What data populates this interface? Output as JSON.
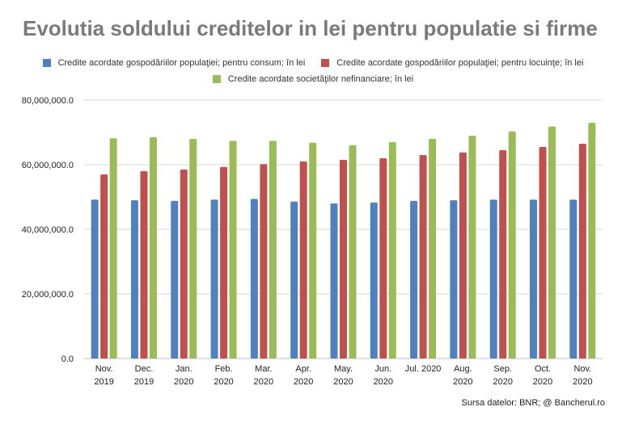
{
  "title": "Evolutia soldului creditelor in lei pentru populatie si firme",
  "source": "Sursa datelor: BNR; @ Bancherul.ro",
  "chart_data": {
    "type": "bar",
    "categories": [
      [
        "Nov.",
        "2019"
      ],
      [
        "Dec.",
        "2019"
      ],
      [
        "Jan.",
        "2020"
      ],
      [
        "Feb.",
        "2020"
      ],
      [
        "Mar.",
        "2020"
      ],
      [
        "Apr.",
        "2020"
      ],
      [
        "May.",
        "2020"
      ],
      [
        "Jun.",
        "2020"
      ],
      [
        "Jul. 2020",
        ""
      ],
      [
        "Aug.",
        "2020"
      ],
      [
        "Sep.",
        "2020"
      ],
      [
        "Oct.",
        "2020"
      ],
      [
        "Nov.",
        "2020"
      ]
    ],
    "series": [
      {
        "name": "Credite acordate gospodăriilor populaţiei; pentru consum; în lei",
        "color": "#4f81bd",
        "values": [
          49200000,
          49000000,
          48800000,
          49200000,
          49400000,
          48600000,
          48000000,
          48300000,
          48800000,
          49000000,
          49200000,
          49200000,
          49200000
        ]
      },
      {
        "name": "Credite acordate gospodăriilor populaţiei; pentru locuinţe; în lei",
        "color": "#c0504d",
        "values": [
          57000000,
          58000000,
          58500000,
          59300000,
          60200000,
          61000000,
          61500000,
          62000000,
          63000000,
          63800000,
          64500000,
          65500000,
          66500000
        ]
      },
      {
        "name": "Credite acordate societăţilor nefinanciare; în lei",
        "color": "#9bbb59",
        "values": [
          68200000,
          68500000,
          68000000,
          67400000,
          67400000,
          66800000,
          66000000,
          67000000,
          68000000,
          69000000,
          70300000,
          71800000,
          73000000
        ]
      }
    ],
    "yticks": [
      "0.0",
      "20,000,000.0",
      "40,000,000.0",
      "60,000,000.0",
      "80,000,000.0"
    ],
    "ylim": [
      0,
      80000000
    ],
    "grid": true,
    "legend_position": "top"
  }
}
